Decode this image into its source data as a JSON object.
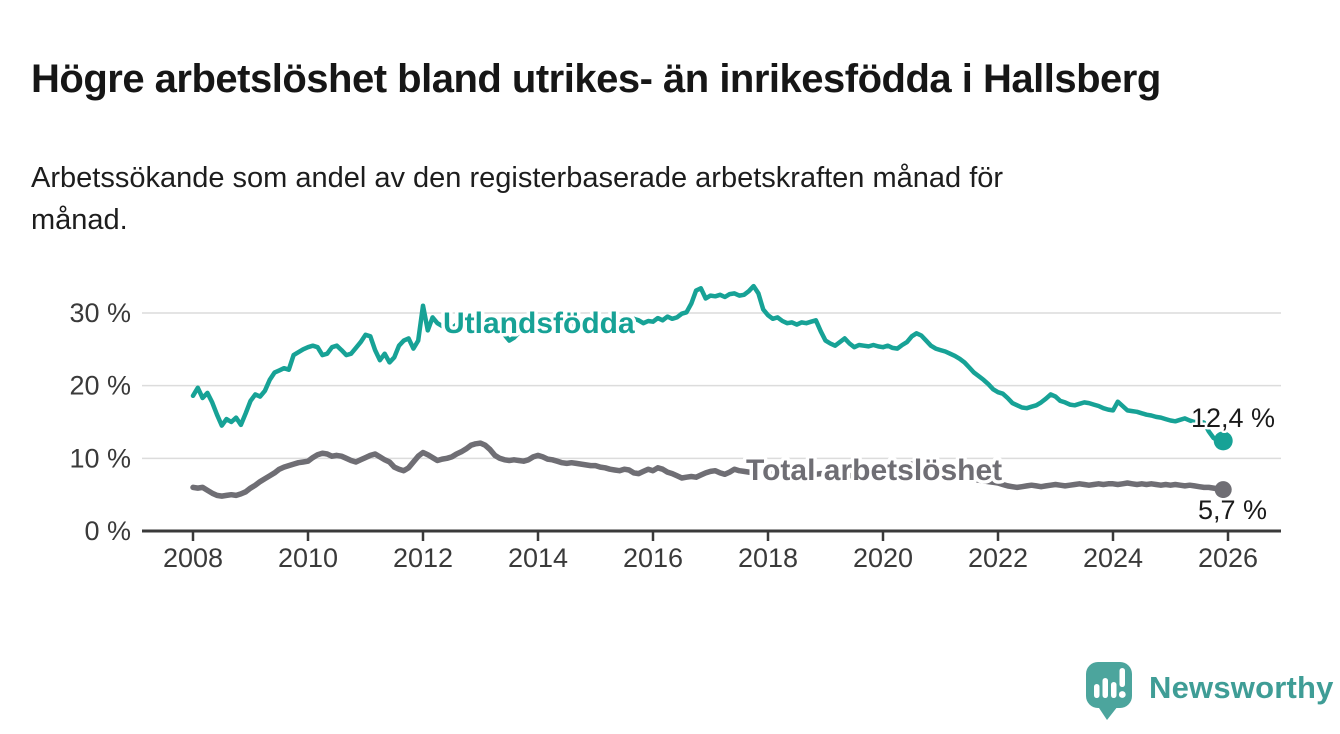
{
  "header": {
    "title": "Högre arbetslöshet bland utrikes- än inrikesfödda i Hallsberg",
    "subtitle_line1": "Arbetssökande som andel av den registerbaserade arbetskraften månad för",
    "subtitle_line2": "månad."
  },
  "footer": {
    "brand": "Newsworthy"
  },
  "colors": {
    "teal_series": "#17a296",
    "gray_series": "#6f6e74",
    "axis_text": "#3a3a3a",
    "gridline": "#dcdcdc",
    "value_label": "#1a1a1a",
    "logo_bubble": "#4ca59d",
    "logo_text": "#3f9d96"
  },
  "chart_data": {
    "type": "line",
    "title": "Högre arbetslöshet bland utrikes- än inrikesfödda i Hallsberg",
    "subtitle": "Arbetssökande som andel av den registerbaserade arbetskraften månad för månad.",
    "x_start": 2008.0,
    "points_per_year": 12,
    "x_axis": {
      "ticks": [
        2008,
        2010,
        2012,
        2014,
        2016,
        2018,
        2020,
        2022,
        2024,
        2026
      ],
      "range": [
        2007.1,
        2026.9
      ]
    },
    "y_axis": {
      "ticks": [
        0,
        10,
        20,
        30
      ],
      "tick_format": "{v} %",
      "range": [
        0,
        36
      ],
      "grid": true
    },
    "legend_position": "inline-labels",
    "series": [
      {
        "name": "Utlandsfödda",
        "color": "#17a296",
        "end_label": "12,4 %",
        "end_value": 12.4,
        "values": [
          18.6,
          19.7,
          18.3,
          19.0,
          17.7,
          16.0,
          14.5,
          15.4,
          15.0,
          15.6,
          14.6,
          16.2,
          17.9,
          18.8,
          18.5,
          19.3,
          20.8,
          21.8,
          22.1,
          22.4,
          22.2,
          24.2,
          24.6,
          25.0,
          25.3,
          25.5,
          25.3,
          24.2,
          24.4,
          25.3,
          25.5,
          24.9,
          24.2,
          24.4,
          25.2,
          26.0,
          27.0,
          26.8,
          24.9,
          23.5,
          24.4,
          23.2,
          23.9,
          25.5,
          26.2,
          26.5,
          25.1,
          26.2,
          31.0,
          27.6,
          29.4,
          28.6,
          28.2,
          28.8,
          27.9,
          28.4,
          28.0,
          28.6,
          28.2,
          27.8,
          28.3,
          28.0,
          27.7,
          27.9,
          27.4,
          27.0,
          26.2,
          26.6,
          27.3,
          27.8,
          28.2,
          28.0,
          28.4,
          28.1,
          28.5,
          28.2,
          27.9,
          28.3,
          28.0,
          28.4,
          28.1,
          28.5,
          28.2,
          28.6,
          28.3,
          28.6,
          28.4,
          28.8,
          28.5,
          28.9,
          28.6,
          29.0,
          29.2,
          29.0,
          28.6,
          28.9,
          28.8,
          29.3,
          29.0,
          29.5,
          29.2,
          29.4,
          29.9,
          30.1,
          31.3,
          33.1,
          33.4,
          32.0,
          32.4,
          32.3,
          32.5,
          32.2,
          32.6,
          32.7,
          32.4,
          32.5,
          33.0,
          33.7,
          32.7,
          30.5,
          29.7,
          29.2,
          29.4,
          28.9,
          28.6,
          28.7,
          28.4,
          28.7,
          28.6,
          28.8,
          29.0,
          27.5,
          26.2,
          25.8,
          25.5,
          26.0,
          26.5,
          25.8,
          25.3,
          25.6,
          25.5,
          25.4,
          25.6,
          25.4,
          25.3,
          25.5,
          25.2,
          25.1,
          25.6,
          26.0,
          26.8,
          27.2,
          26.9,
          26.2,
          25.5,
          25.1,
          24.9,
          24.7,
          24.4,
          24.1,
          23.7,
          23.2,
          22.5,
          21.8,
          21.3,
          20.8,
          20.2,
          19.5,
          19.1,
          18.9,
          18.3,
          17.6,
          17.3,
          17.0,
          16.9,
          17.1,
          17.3,
          17.7,
          18.2,
          18.8,
          18.5,
          17.9,
          17.7,
          17.4,
          17.3,
          17.5,
          17.7,
          17.6,
          17.4,
          17.2,
          16.9,
          16.7,
          16.6,
          17.8,
          17.2,
          16.6,
          16.5,
          16.4,
          16.2,
          16.0,
          15.9,
          15.7,
          15.6,
          15.4,
          15.2,
          15.1,
          15.3,
          15.5,
          15.2,
          15.0,
          15.1,
          14.9,
          13.7,
          12.8,
          12.4,
          12.4
        ]
      },
      {
        "name": "Total arbetslöshet",
        "color": "#6f6e74",
        "end_label": "5,7 %",
        "end_value": 5.7,
        "values": [
          6.0,
          5.9,
          6.0,
          5.6,
          5.2,
          4.9,
          4.8,
          4.9,
          5.0,
          4.9,
          5.1,
          5.4,
          5.9,
          6.3,
          6.8,
          7.2,
          7.6,
          8.0,
          8.5,
          8.8,
          9.0,
          9.2,
          9.4,
          9.5,
          9.6,
          10.1,
          10.5,
          10.7,
          10.6,
          10.3,
          10.4,
          10.3,
          10.0,
          9.7,
          9.5,
          9.8,
          10.1,
          10.4,
          10.6,
          10.2,
          9.8,
          9.5,
          8.8,
          8.5,
          8.3,
          8.7,
          9.5,
          10.3,
          10.8,
          10.5,
          10.1,
          9.7,
          9.9,
          10.0,
          10.2,
          10.6,
          10.9,
          11.3,
          11.8,
          12.0,
          12.1,
          11.8,
          11.2,
          10.4,
          10.0,
          9.8,
          9.7,
          9.8,
          9.7,
          9.6,
          9.8,
          10.2,
          10.4,
          10.2,
          9.9,
          9.8,
          9.6,
          9.4,
          9.3,
          9.4,
          9.3,
          9.2,
          9.1,
          9.0,
          9.0,
          8.8,
          8.7,
          8.5,
          8.4,
          8.3,
          8.5,
          8.4,
          8.0,
          7.9,
          8.2,
          8.5,
          8.3,
          8.7,
          8.5,
          8.1,
          7.9,
          7.6,
          7.3,
          7.4,
          7.5,
          7.4,
          7.7,
          8.0,
          8.2,
          8.3,
          8.0,
          7.8,
          8.1,
          8.5,
          8.3,
          8.2,
          8.1,
          8.0,
          7.9,
          8.0,
          8.2,
          8.1,
          8.0,
          8.1,
          8.0,
          7.9,
          8.0,
          8.1,
          8.0,
          7.9,
          7.8,
          7.9,
          7.9,
          7.8,
          7.7,
          7.8,
          7.7,
          7.6,
          7.7,
          7.8,
          7.7,
          7.8,
          7.9,
          8.0,
          8.0,
          8.2,
          8.5,
          8.8,
          9.0,
          9.1,
          9.2,
          9.1,
          9.0,
          8.9,
          8.7,
          8.5,
          8.4,
          8.2,
          8.0,
          7.8,
          7.6,
          7.5,
          7.3,
          7.1,
          7.0,
          6.9,
          6.8,
          6.7,
          6.6,
          6.4,
          6.2,
          6.1,
          6.0,
          6.1,
          6.2,
          6.3,
          6.2,
          6.1,
          6.2,
          6.3,
          6.4,
          6.3,
          6.2,
          6.3,
          6.4,
          6.5,
          6.4,
          6.3,
          6.4,
          6.5,
          6.4,
          6.5,
          6.5,
          6.4,
          6.5,
          6.6,
          6.5,
          6.4,
          6.5,
          6.4,
          6.5,
          6.4,
          6.3,
          6.4,
          6.3,
          6.4,
          6.3,
          6.2,
          6.3,
          6.2,
          6.1,
          6.0,
          6.0,
          5.9,
          5.8,
          5.7
        ]
      }
    ]
  }
}
